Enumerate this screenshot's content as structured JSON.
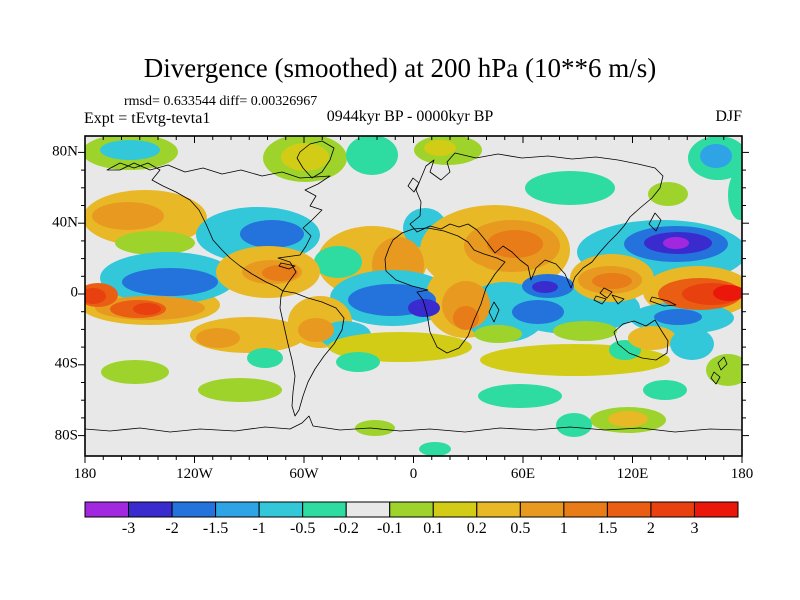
{
  "title": "Divergence (smoothed) at 200 hPa (10**6 m/s)",
  "stats_line": "rmsd= 0.633544 diff= 0.00326967",
  "experiment_label": "Expt = tEvtg-tevta1",
  "period_label": "0944kyr BP - 0000kyr BP",
  "season_label": "DJF",
  "chart_data": {
    "type": "heatmap",
    "subtype": "filled_contour_world_map",
    "title": "Divergence (smoothed) at 200 hPa (10**6 m/s)",
    "season": "DJF",
    "rmsd": 0.633544,
    "diff": 0.00326967,
    "projection": "cylindrical equirectangular, 180W-180E, 90N-90S",
    "grid": false,
    "map_background_color": "#E8E8E8",
    "x_axis": {
      "tick_labels": [
        "180",
        "120W",
        "60W",
        "0",
        "60E",
        "120E",
        "180"
      ],
      "tick_label_x": [
        85,
        194.5,
        304,
        413.5,
        523,
        632.5,
        742
      ],
      "minor_tick_interval_deg": 10,
      "major_tick_interval_deg": 60
    },
    "y_axis": {
      "tick_labels": [
        "80N",
        "40N",
        "0",
        "40S",
        "80S"
      ],
      "tick_label_y": [
        152,
        223,
        293,
        364,
        436
      ],
      "minor_tick_interval_deg": 10,
      "major_tick_interval_deg": 40
    },
    "colorbar": {
      "orientation": "horizontal",
      "boundary_labels": [
        "-3",
        "-2",
        "-1.5",
        "-1",
        "-0.5",
        "-0.2",
        "-0.1",
        "0.1",
        "0.2",
        "0.5",
        "1",
        "1.5",
        "2",
        "3"
      ],
      "levels": [
        -3,
        -2,
        -1.5,
        -1,
        -0.5,
        -0.2,
        -0.1,
        0.1,
        0.2,
        0.5,
        1,
        1.5,
        2,
        3
      ],
      "colors": [
        "#A228E0",
        "#3A2BCE",
        "#2473DC",
        "#2EA4E6",
        "#32C7D9",
        "#2EDBA0",
        "#E8E8E8",
        "#9ED32B",
        "#D3CC17",
        "#E9B826",
        "#E89A20",
        "#E87C18",
        "#EA5E14",
        "#E8400F",
        "#EC170B"
      ]
    },
    "feature_format": "[color_level_index, cx_px, cy_px, rx_px, ry_px] approximate filled-contour cells of the divergence anomaly field",
    "features": [
      [
        7,
        130,
        152,
        48,
        18
      ],
      [
        7,
        305,
        158,
        42,
        24
      ],
      [
        5,
        372,
        155,
        26,
        20
      ],
      [
        7,
        448,
        150,
        34,
        15
      ],
      [
        5,
        570,
        188,
        45,
        17
      ],
      [
        7,
        668,
        194,
        20,
        12
      ],
      [
        5,
        718,
        158,
        30,
        22
      ],
      [
        5,
        740,
        195,
        12,
        25
      ],
      [
        4,
        130,
        150,
        30,
        10
      ],
      [
        8,
        305,
        157,
        24,
        14
      ],
      [
        8,
        440,
        148,
        16,
        8
      ],
      [
        3,
        716,
        156,
        16,
        12
      ],
      [
        9,
        145,
        218,
        62,
        28
      ],
      [
        7,
        155,
        243,
        40,
        12
      ],
      [
        4,
        258,
        235,
        62,
        28
      ],
      [
        9,
        372,
        262,
        55,
        36
      ],
      [
        5,
        338,
        262,
        24,
        16
      ],
      [
        4,
        425,
        228,
        22,
        20
      ],
      [
        9,
        495,
        250,
        75,
        45
      ],
      [
        4,
        662,
        252,
        85,
        32
      ],
      [
        10,
        128,
        216,
        36,
        14
      ],
      [
        2,
        272,
        234,
        32,
        14
      ],
      [
        10,
        398,
        265,
        26,
        28
      ],
      [
        10,
        512,
        246,
        48,
        26
      ],
      [
        11,
        515,
        244,
        28,
        14
      ],
      [
        2,
        676,
        244,
        52,
        18
      ],
      [
        1,
        678,
        243,
        34,
        11
      ],
      [
        0,
        676,
        243,
        13,
        6
      ],
      [
        9,
        150,
        305,
        70,
        20
      ],
      [
        4,
        168,
        278,
        68,
        26
      ],
      [
        9,
        268,
        272,
        52,
        26
      ],
      [
        4,
        392,
        298,
        62,
        28
      ],
      [
        9,
        465,
        300,
        40,
        38
      ],
      [
        4,
        505,
        312,
        42,
        30
      ],
      [
        4,
        572,
        308,
        68,
        26
      ],
      [
        9,
        612,
        278,
        42,
        24
      ],
      [
        9,
        698,
        292,
        55,
        26
      ],
      [
        4,
        682,
        318,
        52,
        16
      ],
      [
        2,
        170,
        282,
        48,
        14
      ],
      [
        10,
        150,
        308,
        55,
        12
      ],
      [
        12,
        138,
        309,
        28,
        9
      ],
      [
        13,
        147,
        309,
        14,
        6
      ],
      [
        12,
        98,
        295,
        20,
        12
      ],
      [
        13,
        93,
        296,
        13,
        8
      ],
      [
        10,
        272,
        272,
        30,
        12
      ],
      [
        11,
        280,
        273,
        18,
        8
      ],
      [
        2,
        392,
        300,
        44,
        16
      ],
      [
        1,
        424,
        308,
        16,
        9
      ],
      [
        10,
        466,
        305,
        24,
        24
      ],
      [
        11,
        466,
        318,
        13,
        12
      ],
      [
        2,
        548,
        286,
        26,
        12
      ],
      [
        1,
        545,
        287,
        13,
        6
      ],
      [
        2,
        538,
        312,
        26,
        12
      ],
      [
        10,
        610,
        280,
        32,
        14
      ],
      [
        11,
        612,
        281,
        20,
        8
      ],
      [
        12,
        700,
        294,
        42,
        16
      ],
      [
        13,
        712,
        294,
        30,
        11
      ],
      [
        14,
        729,
        293,
        16,
        8
      ],
      [
        2,
        678,
        317,
        24,
        8
      ],
      [
        9,
        248,
        335,
        58,
        18
      ],
      [
        9,
        320,
        322,
        32,
        26
      ],
      [
        4,
        345,
        335,
        26,
        14
      ],
      [
        8,
        400,
        347,
        72,
        15
      ],
      [
        5,
        358,
        362,
        22,
        10
      ],
      [
        5,
        265,
        358,
        18,
        10
      ],
      [
        7,
        135,
        372,
        34,
        12
      ],
      [
        7,
        240,
        390,
        42,
        12
      ],
      [
        8,
        575,
        360,
        95,
        16
      ],
      [
        7,
        585,
        331,
        32,
        10
      ],
      [
        7,
        498,
        334,
        24,
        9
      ],
      [
        5,
        625,
        350,
        16,
        10
      ],
      [
        9,
        652,
        338,
        24,
        12
      ],
      [
        4,
        692,
        344,
        22,
        16
      ],
      [
        7,
        728,
        370,
        22,
        16
      ],
      [
        5,
        520,
        396,
        42,
        12
      ],
      [
        5,
        665,
        390,
        22,
        10
      ],
      [
        7,
        628,
        420,
        38,
        13
      ],
      [
        9,
        628,
        419,
        20,
        8
      ],
      [
        5,
        574,
        425,
        18,
        12
      ],
      [
        5,
        435,
        449,
        16,
        7
      ],
      [
        7,
        375,
        428,
        20,
        8
      ],
      [
        10,
        218,
        338,
        22,
        10
      ],
      [
        10,
        316,
        330,
        18,
        12
      ]
    ]
  }
}
